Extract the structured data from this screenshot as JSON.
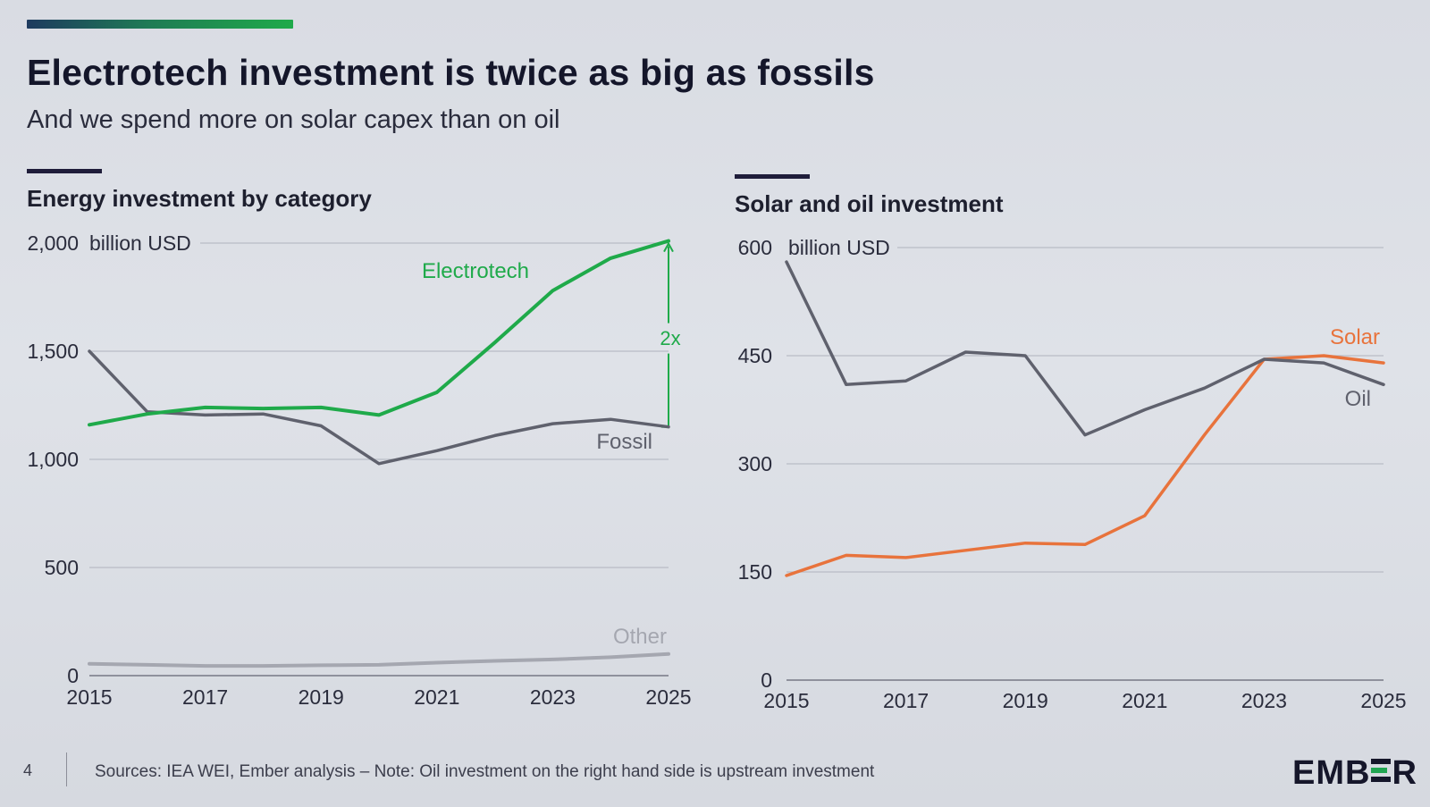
{
  "header": {
    "title": "Electrotech investment is twice as big as fossils",
    "subtitle": "And we spend more on solar capex than on oil"
  },
  "footer": {
    "page_number": "4",
    "sources": "Sources: IEA WEI, Ember analysis – Note: Oil investment on the right hand side is upstream investment",
    "logo_text": "EMBER"
  },
  "colors": {
    "electrotech": "#1faa4a",
    "fossil": "#5f616d",
    "other": "#a5a7b0",
    "solar": "#e8733c",
    "oil": "#5f616d",
    "accent_start": "#1e3a5f",
    "accent_end": "#1faa4a"
  },
  "chart_data": [
    {
      "type": "line",
      "title": "Energy investment by category",
      "ylabel": "billion USD",
      "ylim": [
        0,
        2000
      ],
      "yticks": [
        0,
        500,
        1000,
        1500,
        2000
      ],
      "ytick_labels": [
        "0",
        "500",
        "1,000",
        "1,500",
        "2,000"
      ],
      "xlim": [
        2015,
        2025
      ],
      "xticks": [
        2015,
        2017,
        2019,
        2021,
        2023,
        2025
      ],
      "x": [
        2015,
        2016,
        2017,
        2018,
        2019,
        2020,
        2021,
        2022,
        2023,
        2024,
        2025
      ],
      "series": [
        {
          "name": "Electrotech",
          "color": "#1faa4a",
          "values": [
            1160,
            1210,
            1240,
            1235,
            1240,
            1205,
            1310,
            1540,
            1780,
            1930,
            2010
          ]
        },
        {
          "name": "Fossil",
          "color": "#5f616d",
          "values": [
            1500,
            1220,
            1205,
            1210,
            1155,
            980,
            1040,
            1110,
            1165,
            1185,
            1150
          ]
        },
        {
          "name": "Other",
          "color": "#a5a7b0",
          "values": [
            55,
            50,
            45,
            45,
            48,
            50,
            60,
            68,
            75,
            85,
            100
          ]
        }
      ],
      "annotations": [
        {
          "text": "Electrotech"
        },
        {
          "text": "Fossil"
        },
        {
          "text": "Other"
        },
        {
          "text": "2x"
        }
      ]
    },
    {
      "type": "line",
      "title": "Solar and oil investment",
      "ylabel": "billion USD",
      "ylim": [
        0,
        600
      ],
      "yticks": [
        0,
        150,
        300,
        450,
        600
      ],
      "ytick_labels": [
        "0",
        "150",
        "300",
        "450",
        "600"
      ],
      "xlim": [
        2015,
        2025
      ],
      "xticks": [
        2015,
        2017,
        2019,
        2021,
        2023,
        2025
      ],
      "x": [
        2015,
        2016,
        2017,
        2018,
        2019,
        2020,
        2021,
        2022,
        2023,
        2024,
        2025
      ],
      "series": [
        {
          "name": "Oil",
          "color": "#5f616d",
          "values": [
            580,
            410,
            415,
            455,
            450,
            340,
            375,
            405,
            445,
            440,
            410
          ]
        },
        {
          "name": "Solar",
          "color": "#e8733c",
          "values": [
            145,
            173,
            170,
            180,
            190,
            188,
            228,
            340,
            445,
            450,
            440
          ]
        }
      ],
      "annotations": [
        {
          "text": "Solar"
        },
        {
          "text": "Oil"
        }
      ]
    }
  ]
}
